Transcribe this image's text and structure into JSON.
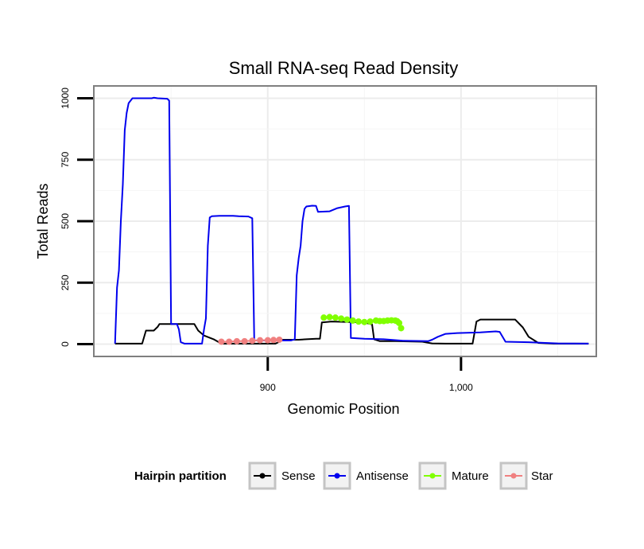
{
  "chart_data": {
    "type": "line",
    "title": "Small RNA-seq Read Density",
    "xlabel": "Genomic Position",
    "ylabel": "Total Reads",
    "xlim": [
      810,
      1070
    ],
    "ylim": [
      -50,
      1050
    ],
    "x_ticks": [
      {
        "value": 900,
        "label": "900"
      },
      {
        "value": 1000,
        "label": "1,000"
      }
    ],
    "y_ticks": [
      {
        "value": 0,
        "label": "0"
      },
      {
        "value": 250,
        "label": "250"
      },
      {
        "value": 500,
        "label": "500"
      },
      {
        "value": 750,
        "label": "750"
      },
      {
        "value": 1000,
        "label": "1000"
      }
    ],
    "grid": true,
    "legend": {
      "title": "Hairpin partition",
      "position": "bottom"
    },
    "series": [
      {
        "name": "Sense",
        "color": "#000000",
        "points": [
          [
            821,
            2
          ],
          [
            835,
            2
          ],
          [
            837,
            55
          ],
          [
            841,
            55
          ],
          [
            843,
            70
          ],
          [
            844,
            82
          ],
          [
            847,
            82
          ],
          [
            862,
            82
          ],
          [
            864,
            55
          ],
          [
            867,
            35
          ],
          [
            872,
            20
          ],
          [
            876,
            2
          ],
          [
            904,
            2
          ],
          [
            906,
            10
          ],
          [
            907,
            18
          ],
          [
            916,
            18
          ],
          [
            920,
            20
          ],
          [
            925,
            22
          ],
          [
            927,
            22
          ],
          [
            928,
            88
          ],
          [
            933,
            92
          ],
          [
            950,
            88
          ],
          [
            954,
            80
          ],
          [
            955,
            20
          ],
          [
            958,
            12
          ],
          [
            960,
            12
          ],
          [
            966,
            12
          ],
          [
            980,
            10
          ],
          [
            985,
            3
          ],
          [
            992,
            2
          ],
          [
            1000,
            2
          ],
          [
            1006,
            2
          ],
          [
            1008,
            92
          ],
          [
            1010,
            100
          ],
          [
            1028,
            100
          ],
          [
            1032,
            68
          ],
          [
            1035,
            30
          ],
          [
            1040,
            5
          ],
          [
            1048,
            2
          ],
          [
            1066,
            2
          ]
        ]
      },
      {
        "name": "Antisense",
        "color": "#0000ee",
        "points": [
          [
            821,
            2
          ],
          [
            822,
            230
          ],
          [
            823,
            300
          ],
          [
            824,
            500
          ],
          [
            825,
            650
          ],
          [
            826,
            870
          ],
          [
            827,
            940
          ],
          [
            828,
            980
          ],
          [
            830,
            1000
          ],
          [
            840,
            1000
          ],
          [
            841,
            1002
          ],
          [
            843,
            1000
          ],
          [
            848,
            998
          ],
          [
            849,
            990
          ],
          [
            850,
            82
          ],
          [
            853,
            82
          ],
          [
            854,
            60
          ],
          [
            855,
            8
          ],
          [
            857,
            2
          ],
          [
            866,
            2
          ],
          [
            867,
            60
          ],
          [
            868,
            105
          ],
          [
            869,
            400
          ],
          [
            870,
            515
          ],
          [
            871,
            520
          ],
          [
            875,
            522
          ],
          [
            882,
            522
          ],
          [
            885,
            520
          ],
          [
            890,
            519
          ],
          [
            892,
            512
          ],
          [
            893,
            15
          ],
          [
            912,
            15
          ],
          [
            914,
            20
          ],
          [
            915,
            280
          ],
          [
            916,
            350
          ],
          [
            917,
            400
          ],
          [
            918,
            500
          ],
          [
            919,
            550
          ],
          [
            920,
            560
          ],
          [
            923,
            563
          ],
          [
            925,
            562
          ],
          [
            926,
            538
          ],
          [
            932,
            540
          ],
          [
            936,
            553
          ],
          [
            940,
            560
          ],
          [
            942,
            562
          ],
          [
            943,
            25
          ],
          [
            950,
            22
          ],
          [
            960,
            20
          ],
          [
            970,
            14
          ],
          [
            983,
            12
          ],
          [
            985,
            18
          ],
          [
            988,
            30
          ],
          [
            992,
            42
          ],
          [
            998,
            45
          ],
          [
            1010,
            48
          ],
          [
            1014,
            50
          ],
          [
            1018,
            52
          ],
          [
            1020,
            50
          ],
          [
            1023,
            10
          ],
          [
            1035,
            8
          ],
          [
            1050,
            3
          ],
          [
            1066,
            2
          ]
        ]
      },
      {
        "name": "Mature",
        "color": "#80ff00",
        "points": [
          [
            929,
            108
          ],
          [
            932,
            110
          ],
          [
            935,
            108
          ],
          [
            938,
            104
          ],
          [
            941,
            100
          ],
          [
            944,
            96
          ],
          [
            947,
            92
          ],
          [
            950,
            90
          ],
          [
            953,
            92
          ],
          [
            956,
            96
          ],
          [
            958,
            94
          ],
          [
            960,
            94
          ],
          [
            962,
            96
          ],
          [
            964,
            97
          ],
          [
            966,
            96
          ],
          [
            967,
            93
          ],
          [
            968,
            86
          ],
          [
            969,
            65
          ]
        ]
      },
      {
        "name": "Star",
        "color": "#f08080",
        "points": [
          [
            876,
            10
          ],
          [
            880,
            10
          ],
          [
            884,
            12
          ],
          [
            888,
            12
          ],
          [
            892,
            14
          ],
          [
            896,
            16
          ],
          [
            900,
            16
          ],
          [
            903,
            17
          ],
          [
            906,
            18
          ]
        ]
      }
    ]
  }
}
